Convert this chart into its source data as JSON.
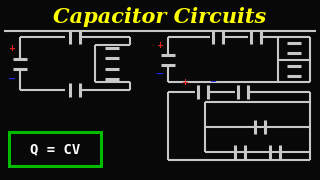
{
  "bg_color": "#080808",
  "title": "Capacitor Circuits",
  "title_color": "#FFFF00",
  "title_fontsize": 15,
  "wire_color": "#C8C8C8",
  "wire_lw": 1.5,
  "cap_color": "#C8C8C8",
  "cap_lw": 2.2,
  "formula_text": "Q = CV",
  "formula_box_color": "#00BB00",
  "formula_text_color": "#FFFFFF",
  "plus_color": "#EE2222",
  "minus_color": "#2222EE"
}
